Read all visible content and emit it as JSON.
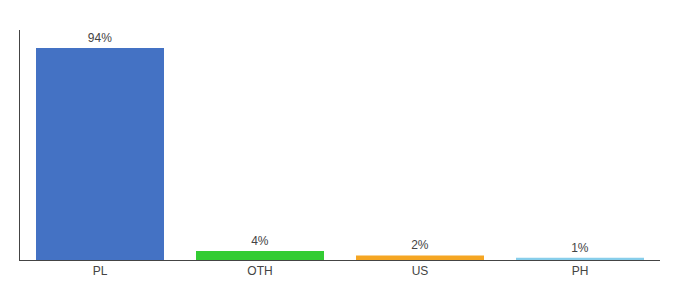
{
  "chart_data": {
    "type": "bar",
    "categories": [
      "PL",
      "OTH",
      "US",
      "PH"
    ],
    "values": [
      94,
      4,
      2,
      1
    ],
    "value_labels": [
      "94%",
      "4%",
      "2%",
      "1%"
    ],
    "data_labels": true,
    "colors": [
      "#4472c4",
      "#33cc33",
      "#f5a623",
      "#87ceeb"
    ],
    "ylim": [
      0,
      102
    ],
    "grid": false,
    "tick_labels": "x"
  }
}
